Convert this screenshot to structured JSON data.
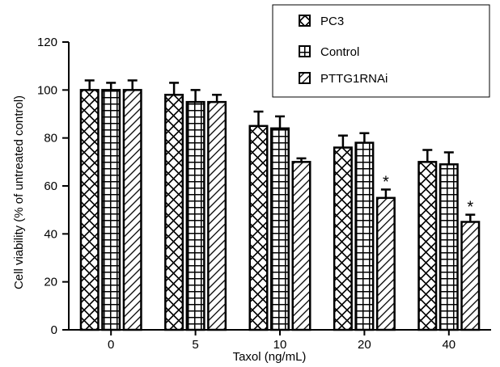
{
  "chart_data": {
    "type": "bar",
    "title": "",
    "xlabel": "Taxol (ng/mL)",
    "ylabel": "Cell viability (% of untreated control)",
    "categories": [
      "0",
      "5",
      "10",
      "20",
      "40"
    ],
    "ylim": [
      0,
      120
    ],
    "yticks": [
      "0",
      "20",
      "40",
      "60",
      "80",
      "100",
      "120"
    ],
    "grid": false,
    "legend_position": "top-right",
    "series": [
      {
        "name": "PC3",
        "pattern": "diamond-check",
        "values": [
          100,
          98,
          85,
          76,
          70
        ],
        "errors": [
          4,
          5,
          6,
          5,
          5
        ]
      },
      {
        "name": "Control",
        "pattern": "grid",
        "values": [
          100,
          95,
          84,
          78,
          69
        ],
        "errors": [
          3,
          5,
          5,
          4,
          5
        ]
      },
      {
        "name": "PTTG1RNAi",
        "pattern": "diagonal",
        "values": [
          100,
          95,
          70,
          55,
          45
        ],
        "errors": [
          4,
          3,
          1.5,
          3.5,
          3
        ]
      }
    ],
    "annotations": [
      {
        "text": "*",
        "category": "20",
        "series": "PTTG1RNAi"
      },
      {
        "text": "*",
        "category": "40",
        "series": "PTTG1RNAi"
      }
    ]
  }
}
